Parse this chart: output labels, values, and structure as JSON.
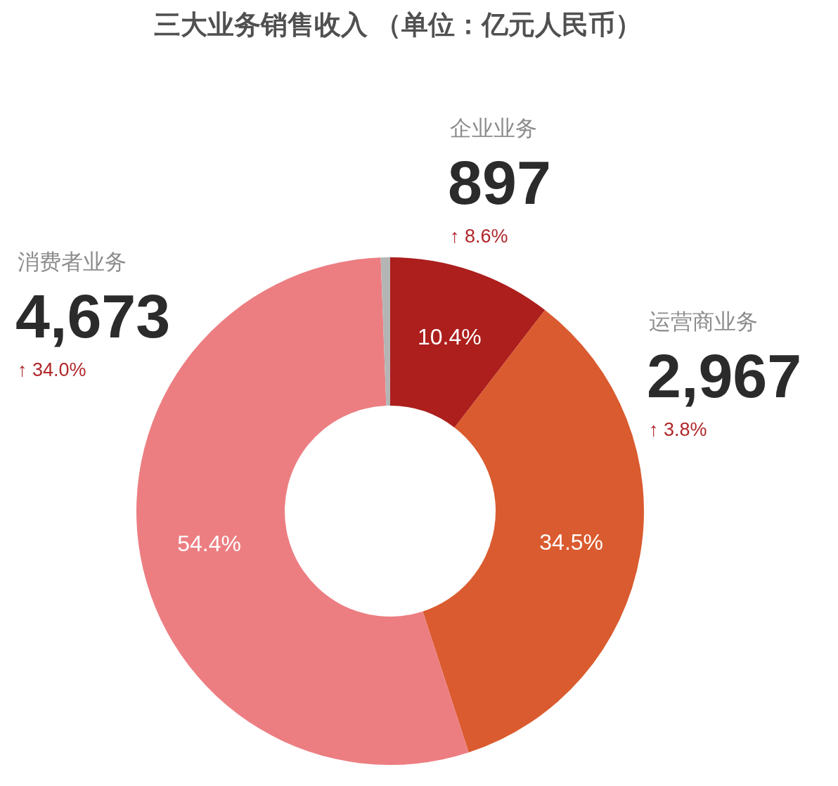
{
  "chart_data": {
    "type": "donut",
    "title": "三大业务销售收入 （单位：亿元人民币）",
    "categories": [
      "企业业务",
      "运营商业务",
      "消费者业务",
      null
    ],
    "values": [
      897,
      2967,
      4673,
      51
    ],
    "colors": [
      "#ac1f1d",
      "#da5b2f",
      "#ec7e82",
      "#b5b5b5"
    ],
    "value_labels": [
      "897",
      "2,967",
      "4,673",
      null
    ],
    "annotations": [
      "10.4%",
      "34.5%",
      "54.4%",
      "↑ 8.6%",
      "↑ 3.8%",
      "↑ 34.0%"
    ]
  }
}
